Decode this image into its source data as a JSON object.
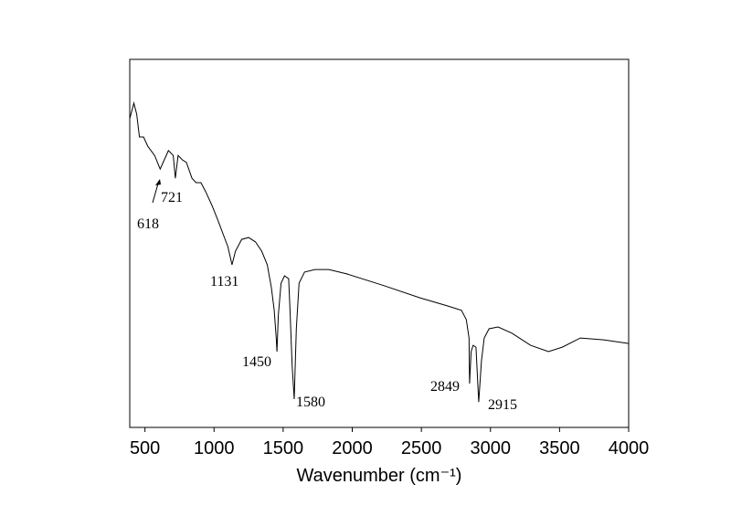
{
  "chart_data": {
    "type": "line",
    "x_label": "Wavenumber (cm⁻¹)",
    "x": [
      390,
      420,
      440,
      460,
      490,
      520,
      570,
      610,
      640,
      670,
      705,
      720,
      740,
      770,
      800,
      840,
      870,
      905,
      940,
      985,
      1025,
      1070,
      1100,
      1130,
      1155,
      1200,
      1250,
      1300,
      1345,
      1385,
      1415,
      1435,
      1450,
      1455,
      1465,
      1485,
      1510,
      1540,
      1550,
      1565,
      1580,
      1595,
      1615,
      1655,
      1730,
      1830,
      1960,
      2230,
      2490,
      2690,
      2790,
      2825,
      2845,
      2849,
      2860,
      2875,
      2895,
      2915,
      2935,
      2955,
      2990,
      3055,
      3155,
      3290,
      3420,
      3520,
      3650,
      3820,
      4000
    ],
    "values": [
      83.9,
      88.1,
      85.1,
      78.9,
      78.9,
      76.4,
      73.9,
      70.2,
      72.7,
      75.2,
      73.9,
      67.7,
      73.9,
      72.7,
      72,
      67.7,
      66.5,
      66.5,
      64,
      60.3,
      56.6,
      52.1,
      49.1,
      44.2,
      47.9,
      51.1,
      51.6,
      50.4,
      47.9,
      44.2,
      38,
      31.8,
      24.3,
      20.6,
      30.5,
      39.2,
      41.2,
      40.4,
      31.8,
      16.9,
      7.7,
      26.8,
      39.2,
      42.2,
      42.9,
      42.9,
      41.7,
      38.5,
      35.2,
      33,
      31.8,
      29.3,
      24.3,
      11.9,
      20.6,
      22.3,
      21.8,
      6.9,
      18.1,
      24.3,
      26.8,
      27.3,
      25.6,
      22.3,
      20.6,
      21.8,
      24.3,
      23.8,
      22.8
    ],
    "color": "#000000",
    "xlim": [
      390,
      4000
    ],
    "ylim": [
      0,
      100
    ],
    "xticks": [
      500,
      1000,
      1500,
      2000,
      2500,
      3000,
      3500,
      4000
    ],
    "peaks": [
      618,
      721,
      1131,
      1450,
      1580,
      2849,
      2915
    ]
  }
}
